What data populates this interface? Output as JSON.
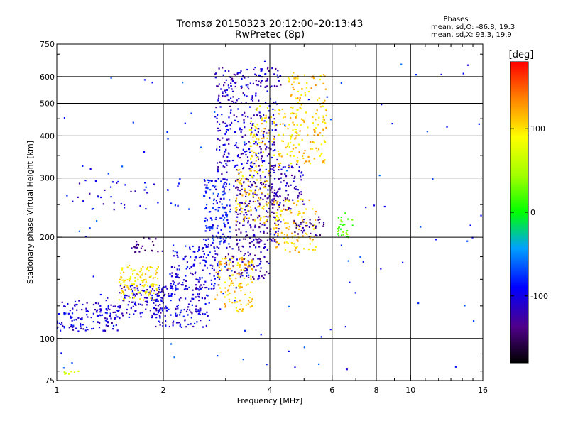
{
  "header": {
    "title_line1": "Tromsø 20150323 20:12:00–20:13:43",
    "title_line2": "RwPretec (8p)"
  },
  "phases": {
    "heading": "Phases",
    "line_o": "mean, sd,O: -86.8, 19.3",
    "line_x": "mean, sd,X: 93.3, 19.9"
  },
  "colorbar": {
    "title": "[deg]",
    "ticks": [
      {
        "label": "100",
        "value": 100
      },
      {
        "label": "0",
        "value": 0
      },
      {
        "label": "-100",
        "value": -100
      }
    ],
    "range": [
      -180,
      180
    ]
  },
  "chart_data": {
    "type": "scatter",
    "xlabel": "Frequency [MHz]",
    "ylabel": "Stationary phase Virtual Height [km]",
    "xscale": "log",
    "yscale": "log",
    "xlim": [
      1,
      16
    ],
    "ylim": [
      75,
      750
    ],
    "xticks": [
      1,
      2,
      4,
      6,
      8,
      10,
      16
    ],
    "xtick_labels": [
      "1",
      "2",
      "4",
      "6",
      "8",
      "10",
      "16"
    ],
    "yticks": [
      75,
      100,
      200,
      300,
      400,
      500,
      600,
      750
    ],
    "ytick_labels": [
      "75",
      "100",
      "200",
      "300",
      "400",
      "500",
      "600",
      "750"
    ],
    "grid_x": [
      2,
      4,
      6,
      8,
      10
    ],
    "grid_y": [
      100,
      200,
      300,
      400,
      500,
      600
    ],
    "color_by": "phase [deg]",
    "clusters": [
      {
        "f": [
          1.0,
          1.5
        ],
        "h": [
          105,
          130
        ],
        "phase": -105,
        "n": 140
      },
      {
        "f": [
          1.5,
          2.0
        ],
        "h": [
          115,
          145
        ],
        "phase": -110,
        "n": 110
      },
      {
        "f": [
          1.5,
          1.95
        ],
        "h": [
          130,
          165
        ],
        "phase": 100,
        "n": 110
      },
      {
        "f": [
          1.9,
          2.7
        ],
        "h": [
          108,
          145
        ],
        "phase": -105,
        "n": 160
      },
      {
        "f": [
          2.1,
          2.9
        ],
        "h": [
          140,
          190
        ],
        "phase": -100,
        "n": 140
      },
      {
        "f": [
          2.6,
          3.1
        ],
        "h": [
          190,
          300
        ],
        "phase": -90,
        "n": 150
      },
      {
        "f": [
          2.8,
          3.6
        ],
        "h": [
          120,
          175
        ],
        "phase": 110,
        "n": 130
      },
      {
        "f": [
          3.0,
          4.0
        ],
        "h": [
          150,
          190
        ],
        "phase": -120,
        "n": 80
      },
      {
        "f": [
          2.8,
          4.2
        ],
        "h": [
          300,
          560
        ],
        "phase": -110,
        "n": 260
      },
      {
        "f": [
          2.8,
          4.3
        ],
        "h": [
          560,
          640
        ],
        "phase": -115,
        "n": 90
      },
      {
        "f": [
          3.2,
          4.3
        ],
        "h": [
          190,
          300
        ],
        "phase": -125,
        "n": 200
      },
      {
        "f": [
          3.2,
          4.0
        ],
        "h": [
          220,
          320
        ],
        "phase": 105,
        "n": 90
      },
      {
        "f": [
          3.5,
          4.8
        ],
        "h": [
          320,
          500
        ],
        "phase": 100,
        "n": 120
      },
      {
        "f": [
          4.1,
          5.4
        ],
        "h": [
          180,
          260
        ],
        "phase": 110,
        "n": 120
      },
      {
        "f": [
          4.0,
          5.0
        ],
        "h": [
          240,
          330
        ],
        "phase": -120,
        "n": 80
      },
      {
        "f": [
          4.5,
          5.8
        ],
        "h": [
          330,
          620
        ],
        "phase": 110,
        "n": 150
      },
      {
        "f": [
          4.6,
          5.7
        ],
        "h": [
          200,
          230
        ],
        "phase": -135,
        "n": 40
      },
      {
        "f": [
          6.2,
          6.9
        ],
        "h": [
          200,
          240
        ],
        "phase": 20,
        "n": 30
      },
      {
        "f": [
          1.1,
          2.3
        ],
        "h": [
          240,
          300
        ],
        "phase": -100,
        "n": 40
      },
      {
        "f": [
          1.05,
          1.2
        ],
        "h": [
          77,
          80
        ],
        "phase": 60,
        "n": 8
      },
      {
        "f": [
          1.6,
          2.0
        ],
        "h": [
          180,
          200
        ],
        "phase": -135,
        "n": 25
      },
      {
        "f": [
          1.0,
          16.0
        ],
        "h": [
          78,
          700
        ],
        "phase": -80,
        "n": 120
      }
    ]
  }
}
